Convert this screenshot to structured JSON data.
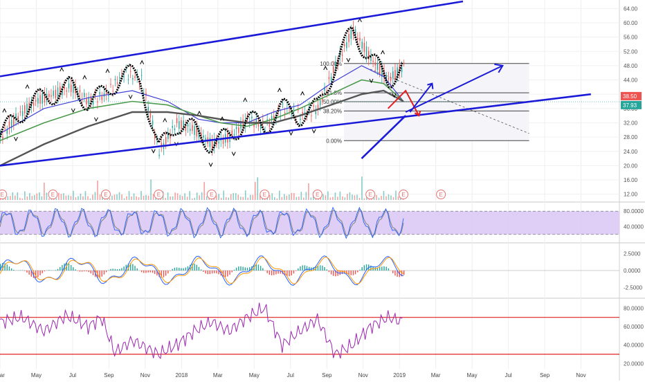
{
  "chart_data": {
    "type": "line",
    "grid": true,
    "colors": {
      "price_up": "#26a69a",
      "price_down": "#ef5350",
      "channel": "#1a1ad8",
      "ma_fast": "#3f3fd8",
      "ma_mid": "#4c9a4c",
      "ma_slow": "#555555",
      "fractal_line": "#000000",
      "stoch_band": "#d9c7f5",
      "stoch_k": "#2962ff",
      "stoch_d": "#888888",
      "rsi_line": "#9c27b0",
      "rsi_levels": "#e02020",
      "macd_line": "#2962ff",
      "signal_line": "#ff9800",
      "badge_price": "#ef5350",
      "badge_ma": "#26a69a",
      "projection_arrow": "#1a1ad8",
      "reversal_arrow": "#e02020"
    },
    "x_axis": {
      "labels": [
        "Mar",
        "May",
        "Jul",
        "Sep",
        "Nov",
        "2018",
        "Mar",
        "May",
        "Jul",
        "Sep",
        "Nov",
        "2019",
        "Mar",
        "May",
        "Jul",
        "Sep",
        "Nov"
      ]
    },
    "panes": [
      {
        "id": "price",
        "y_ticks": [
          "64.00",
          "60.00",
          "56.00",
          "52.00",
          "48.00",
          "44.00",
          "40.00",
          "36.00",
          "32.00",
          "28.00",
          "24.00",
          "20.00",
          "16.00",
          "12.00"
        ],
        "ylim": [
          10,
          66
        ],
        "series": [
          {
            "kind": "price",
            "x": [
              0,
              4,
              8,
              12,
              16,
              20,
              24,
              28,
              32,
              36,
              40,
              44,
              48,
              52,
              56,
              60,
              64,
              68,
              72,
              76,
              80,
              84,
              88,
              91.5
            ],
            "values": [
              28,
              34,
              38,
              40,
              42,
              38,
              40,
              46,
              44,
              24,
              32,
              30,
              26,
              28,
              33,
              31,
              36,
              34,
              36,
              48,
              58,
              50,
              44,
              48
            ]
          },
          {
            "kind": "ma_fast",
            "x": [
              0,
              10,
              20,
              30,
              38,
              45,
              50,
              56,
              62,
              68,
              75,
              82,
              87,
              91.5
            ],
            "values": [
              29,
              36,
              39,
              41,
              38,
              33,
              32,
              32,
              35,
              37,
              43,
              48,
              45,
              38
            ]
          },
          {
            "kind": "ma_mid",
            "x": [
              0,
              10,
              20,
              30,
              38,
              45,
              50,
              56,
              62,
              68,
              75,
              82,
              87,
              91.5
            ],
            "values": [
              27,
              32,
              36,
              38,
              37,
              34,
              32,
              31,
              33,
              36,
              40,
              44,
              43,
              38
            ]
          },
          {
            "kind": "ma_slow",
            "x": [
              0,
              10,
              20,
              30,
              38,
              45,
              50,
              56,
              62,
              68,
              75,
              82,
              87,
              91.5
            ],
            "values": [
              20,
              26,
              31,
              35,
              35,
              34,
              33,
              32,
              32,
              34,
              37,
              40,
              41,
              38
            ]
          }
        ],
        "channel_upper": {
          "x": [
            0,
            105
          ],
          "values": [
            45,
            66
          ]
        },
        "channel_lower": {
          "x": [
            0,
            134
          ],
          "values": [
            20,
            40
          ]
        },
        "rising_support": {
          "x": [
            82,
            92
          ],
          "values": [
            22,
            34
          ]
        },
        "breakout_arrow": {
          "x": [
            92,
            114
          ],
          "values": [
            35,
            48
          ]
        },
        "fib_levels": [
          {
            "label": "100.00%",
            "value": 48.6
          },
          {
            "label": "61.8%",
            "value": 40.4
          },
          {
            "label": "50.00%",
            "value": 37.9
          },
          {
            "label": "38.20%",
            "value": 35.3
          },
          {
            "label": "0.00%",
            "value": 27.0
          }
        ],
        "price_badges": [
          {
            "label": "38.50",
            "value": 38.5,
            "kind": "price"
          },
          {
            "label": "37.93",
            "value": 37.93,
            "kind": "ma"
          }
        ],
        "earnings_markers": [
          {
            "label": "E",
            "x": 0.5
          },
          {
            "label": "E",
            "x": 12
          },
          {
            "label": "E",
            "x": 24
          },
          {
            "label": "E",
            "x": 36
          },
          {
            "label": "E",
            "x": 48
          },
          {
            "label": "E",
            "x": 60
          },
          {
            "label": "E",
            "x": 72
          },
          {
            "label": "E",
            "x": 84
          },
          {
            "label": "E",
            "x": 91.5
          },
          {
            "label": "E",
            "x": 100
          }
        ]
      },
      {
        "id": "stochastic",
        "y_ticks": [
          "80.0000",
          "40.0000"
        ],
        "ylim": [
          0,
          100
        ],
        "bands": [
          20,
          80
        ]
      },
      {
        "id": "macd",
        "y_ticks": [
          "2.5000",
          "0.0000",
          "-2.5000"
        ],
        "ylim": [
          -4,
          4
        ]
      },
      {
        "id": "rsi",
        "y_ticks": [
          "80.0000",
          "60.0000",
          "40.0000",
          "20.0000"
        ],
        "ylim": [
          15,
          90
        ],
        "levels": [
          70,
          30
        ],
        "series": [
          {
            "x": [
              0,
              5,
              10,
              15,
              20,
              23,
              26,
              30,
              36,
              40,
              44,
              48,
              52,
              56,
              60,
              64,
              68,
              72,
              76,
              80,
              84,
              88,
              91.5
            ],
            "values": [
              65,
              70,
              55,
              72,
              60,
              70,
              32,
              45,
              30,
              40,
              55,
              65,
              55,
              70,
              80,
              40,
              55,
              68,
              30,
              40,
              60,
              70,
              65
            ]
          }
        ]
      }
    ]
  }
}
